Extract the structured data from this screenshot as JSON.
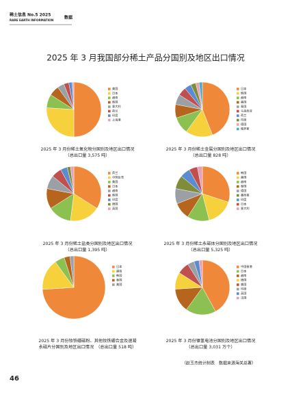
{
  "header": {
    "title": "稀土信息",
    "issue": "No.5 2025",
    "subtitle": "RARE EARTH INFORMATION",
    "section": "数据"
  },
  "page_title": "2025 年 3 月我国部分稀土产品分国别及地区出口情况",
  "footer": "（赵玉杰统计制表　数据来源海关总署）",
  "page_number": "46",
  "chart_data": [
    {
      "type": "pie",
      "title": "2025 年 3 月份稀土氧化物分国别及地区出口情况",
      "subtitle": "（总出口量 3,575 吨）",
      "categories": [
        "美国",
        "日本",
        "越南",
        "韩国",
        "意大利",
        "荷兰",
        "印度",
        "上海港"
      ],
      "values": [
        50,
        26,
        8,
        6,
        4,
        3,
        2,
        1
      ],
      "colors": [
        "#f0883a",
        "#f7d13c",
        "#8cc152",
        "#b5651d",
        "#9aa0a6",
        "#c0504d",
        "#5b8bd0",
        "#e8a0b4"
      ]
    },
    {
      "type": "pie",
      "title": "2025 年 3 月份稀土金属分国别及地区出口情况",
      "subtitle": "（总出口量 828 吨）",
      "categories": [
        "日本",
        "韩国",
        "越南",
        "美国",
        "泰国",
        "马来西亚",
        "荷兰",
        "印度",
        "德国",
        "俄罗斯"
      ],
      "values": [
        44,
        16,
        10,
        8,
        6,
        5,
        4,
        3,
        2,
        2
      ],
      "colors": [
        "#f0883a",
        "#f7d13c",
        "#8cc152",
        "#b5651d",
        "#9aa0a6",
        "#c0504d",
        "#5b8bd0",
        "#7f8c3a",
        "#e8a0b4",
        "#4bacc6"
      ]
    },
    {
      "type": "pie",
      "title": "2025 年 3 月份稀土盐类分国别及地区出口情况",
      "subtitle": "（总出口量 1,395 吨）",
      "categories": [
        "荷兰",
        "中国台湾",
        "美国",
        "日本",
        "越南",
        "韩国",
        "印度",
        "德国",
        "英国"
      ],
      "values": [
        34,
        18,
        14,
        12,
        8,
        6,
        4,
        2,
        2
      ],
      "colors": [
        "#f0883a",
        "#f7d13c",
        "#8cc152",
        "#b5651d",
        "#9aa0a6",
        "#c0504d",
        "#5b8bd0",
        "#7f8c3a",
        "#e8a0b4"
      ]
    },
    {
      "type": "pie",
      "title": "2025 年 3 月份稀土永磁体分国别及地区出口情况",
      "subtitle": "（总出口量 5,325 吨）",
      "categories": [
        "韩国",
        "美国",
        "越南",
        "泰国",
        "德国",
        "墨西哥",
        "印度",
        "日本",
        "意大利"
      ],
      "values": [
        30,
        16,
        13,
        10,
        9,
        8,
        6,
        5,
        3
      ],
      "colors": [
        "#f0883a",
        "#f7d13c",
        "#8cc152",
        "#b5651d",
        "#9aa0a6",
        "#7f8c3a",
        "#5b8bd0",
        "#c0504d",
        "#e8a0b4"
      ]
    },
    {
      "type": "pie",
      "title": "2025 年 3 月份钕铁硼磁粉、其他钕铁硼合金及速凝",
      "subtitle": "永磁片分国别及地区出口情况　（总出口量 518 吨）",
      "categories": [
        "日本",
        "越南",
        "韩国",
        "泰国",
        "美国"
      ],
      "values": [
        74,
        16,
        5,
        3,
        2
      ],
      "colors": [
        "#f0883a",
        "#f7d13c",
        "#8cc152",
        "#b5651d",
        "#9aa0a6"
      ]
    },
    {
      "type": "pie",
      "title": "2025 年 3 月份镍氢电池分国别及地区出口情况",
      "subtitle": "（总出口量 3,031 万个）",
      "categories": [
        "中国香港",
        "日本",
        "越南",
        "德国",
        "美国",
        "印度",
        "英国",
        "法国"
      ],
      "values": [
        42,
        18,
        14,
        10,
        7,
        4,
        3,
        2
      ],
      "colors": [
        "#f0883a",
        "#8cc152",
        "#b5651d",
        "#f7d13c",
        "#c0504d",
        "#9aa0a6",
        "#5b8bd0",
        "#e8a0b4"
      ]
    }
  ]
}
